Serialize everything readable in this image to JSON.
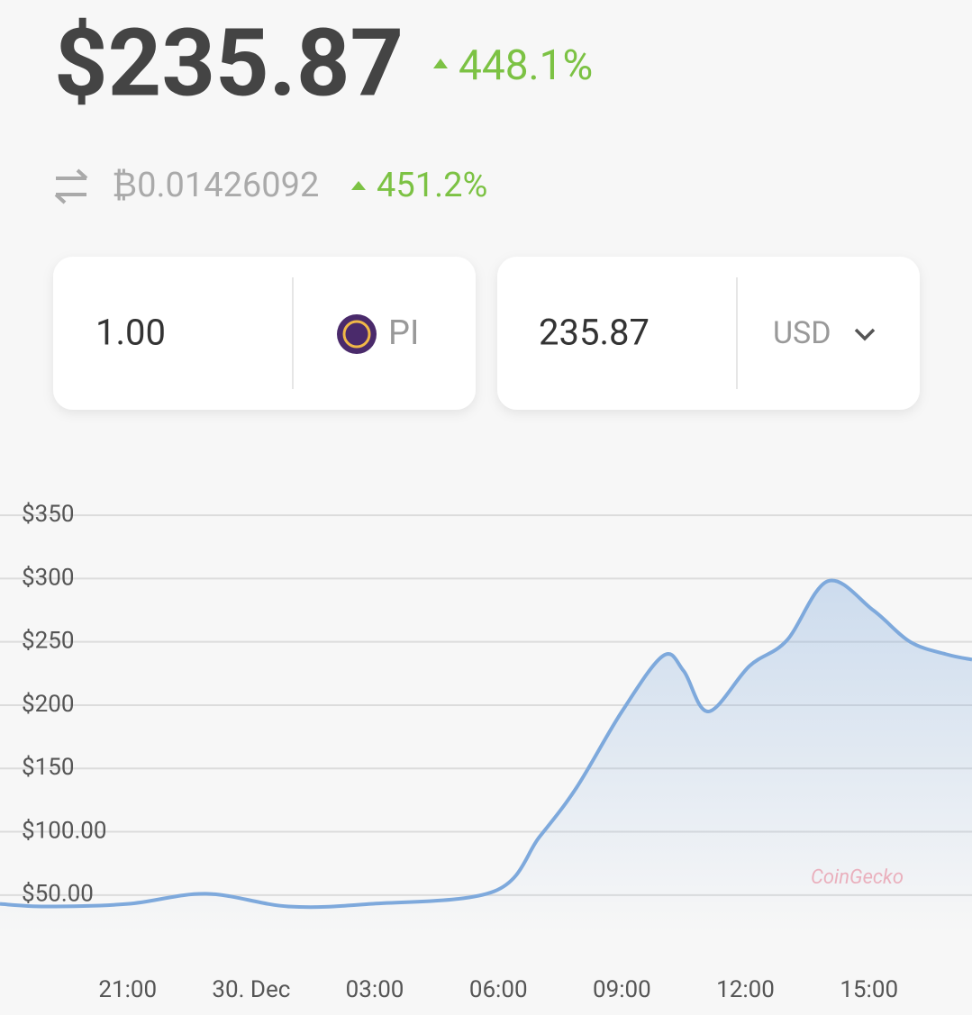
{
  "header": {
    "price": "$235.87",
    "price_change": "448.1%",
    "btc_price": "₿0.01426092",
    "btc_change": "451.2%"
  },
  "converter": {
    "from_amount": "1.00",
    "from_currency": "PI",
    "to_amount": "235.87",
    "to_currency": "USD"
  },
  "watermark": "CoinGecko",
  "chart_data": {
    "type": "area",
    "x": [
      -6.1,
      -5.0,
      -3.0,
      -1.1,
      0.9,
      2.9,
      5.9,
      7.0,
      7.9,
      9.0,
      10.0,
      10.5,
      11.1,
      12.1,
      13.0,
      14.0,
      15.1,
      16.0,
      16.9,
      17.5
    ],
    "series": [
      {
        "color": "#7ea9dc",
        "values": [
          43,
          41,
          43,
          51,
          41,
          43,
          53,
          96,
          135,
          195,
          239,
          227,
          195,
          231,
          251,
          298,
          275,
          250,
          240,
          236
        ]
      }
    ],
    "xlim": [
      -6.1,
      17.5
    ],
    "xticks": [
      {
        "value": -3,
        "label": "21:00"
      },
      {
        "value": 0,
        "label": "30. Dec"
      },
      {
        "value": 3,
        "label": "03:00"
      },
      {
        "value": 6,
        "label": "06:00"
      },
      {
        "value": 9,
        "label": "09:00"
      },
      {
        "value": 12,
        "label": "12:00"
      },
      {
        "value": 15,
        "label": "15:00"
      }
    ],
    "ylim": [
      20,
      370
    ],
    "yticks": [
      {
        "value": 350,
        "label": "$350"
      },
      {
        "value": 300,
        "label": "$300"
      },
      {
        "value": 250,
        "label": "$250"
      },
      {
        "value": 200,
        "label": "$200"
      },
      {
        "value": 150,
        "label": "$150"
      },
      {
        "value": 100,
        "label": "$100.00"
      },
      {
        "value": 50,
        "label": "$50.00"
      }
    ],
    "grid": true
  }
}
